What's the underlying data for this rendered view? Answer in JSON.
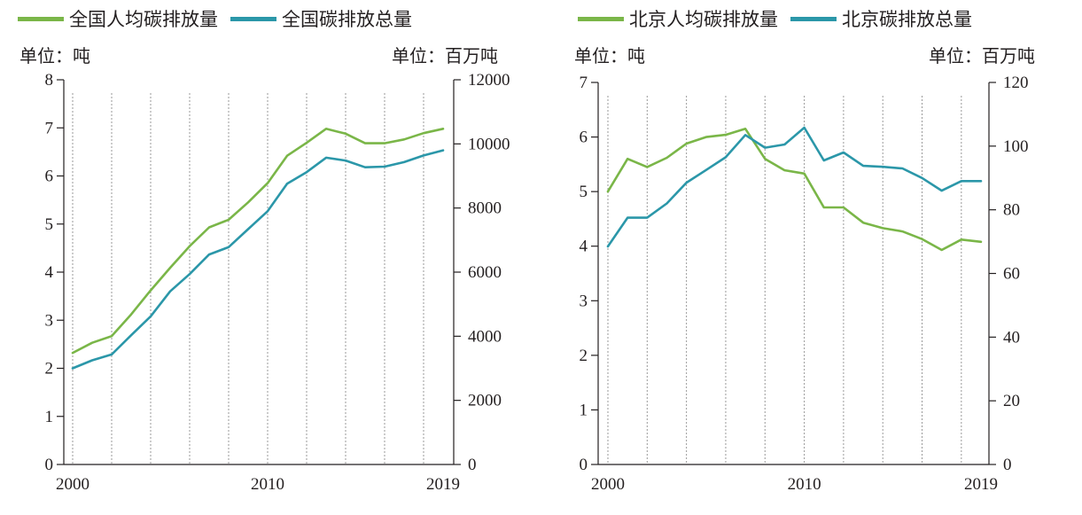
{
  "chart_data": [
    {
      "type": "line",
      "legend": [
        "全国人均碳排放量",
        "全国碳排放总量"
      ],
      "left_unit": "单位：吨",
      "right_unit": "单位：百万吨",
      "x": [
        2000,
        2001,
        2002,
        2003,
        2004,
        2005,
        2006,
        2007,
        2008,
        2009,
        2010,
        2011,
        2012,
        2013,
        2014,
        2015,
        2016,
        2017,
        2018,
        2019
      ],
      "x_tick_labels": [
        "2000",
        "2010",
        "2019"
      ],
      "y_left_ticks": [
        "0",
        "1",
        "2",
        "3",
        "4",
        "5",
        "6",
        "7",
        "8"
      ],
      "y_right_ticks": [
        "0",
        "2000",
        "4000",
        "6000",
        "8000",
        "10000",
        "12000"
      ],
      "ylim_left": [
        0,
        8
      ],
      "ylim_right": [
        0,
        12000
      ],
      "series": [
        {
          "name": "全国人均碳排放量",
          "axis": "left",
          "color": "#7ab648",
          "values": [
            2.32,
            2.53,
            2.67,
            3.12,
            3.62,
            4.09,
            4.54,
            4.93,
            5.09,
            5.45,
            5.85,
            6.42,
            6.69,
            6.98,
            6.88,
            6.68,
            6.68,
            6.76,
            6.89,
            6.98
          ]
        },
        {
          "name": "全国碳排放总量",
          "axis": "right",
          "color": "#2b97a9",
          "values": [
            3000,
            3250,
            3430,
            4030,
            4620,
            5400,
            5940,
            6550,
            6780,
            7340,
            7900,
            8760,
            9120,
            9570,
            9480,
            9270,
            9290,
            9430,
            9640,
            9800
          ]
        }
      ],
      "vertical_gridlines": [
        2000,
        2002,
        2004,
        2006,
        2008,
        2010,
        2012,
        2014,
        2016,
        2018
      ]
    },
    {
      "type": "line",
      "legend": [
        "北京人均碳排放量",
        "北京碳排放总量"
      ],
      "left_unit": "单位：吨",
      "right_unit": "单位：百万吨",
      "x": [
        2000,
        2001,
        2002,
        2003,
        2004,
        2005,
        2006,
        2007,
        2008,
        2009,
        2010,
        2011,
        2012,
        2013,
        2014,
        2015,
        2016,
        2017,
        2018,
        2019
      ],
      "x_tick_labels": [
        "2000",
        "2010",
        "2019"
      ],
      "y_left_ticks": [
        "0",
        "1",
        "2",
        "3",
        "4",
        "5",
        "6",
        "7"
      ],
      "y_right_ticks": [
        "0",
        "20",
        "40",
        "60",
        "80",
        "100",
        "120"
      ],
      "ylim_left": [
        0,
        7
      ],
      "ylim_right": [
        0,
        120
      ],
      "series": [
        {
          "name": "北京人均碳排放量",
          "axis": "left",
          "color": "#7ab648",
          "values": [
            5.0,
            5.6,
            5.45,
            5.62,
            5.88,
            6.0,
            6.04,
            6.15,
            5.6,
            5.39,
            5.33,
            4.71,
            4.71,
            4.43,
            4.33,
            4.27,
            4.13,
            3.93,
            4.12,
            4.08
          ]
        },
        {
          "name": "北京碳排放总量",
          "axis": "right",
          "color": "#2b97a9",
          "values": [
            68.5,
            77.5,
            77.5,
            82,
            88.5,
            92.5,
            96.5,
            103.5,
            99.5,
            100.5,
            105.8,
            95.5,
            98,
            93.8,
            93.5,
            93,
            90,
            86,
            89,
            89
          ]
        }
      ],
      "vertical_gridlines": [
        2000,
        2002,
        2004,
        2006,
        2008,
        2010,
        2012,
        2014,
        2016,
        2018
      ]
    }
  ]
}
